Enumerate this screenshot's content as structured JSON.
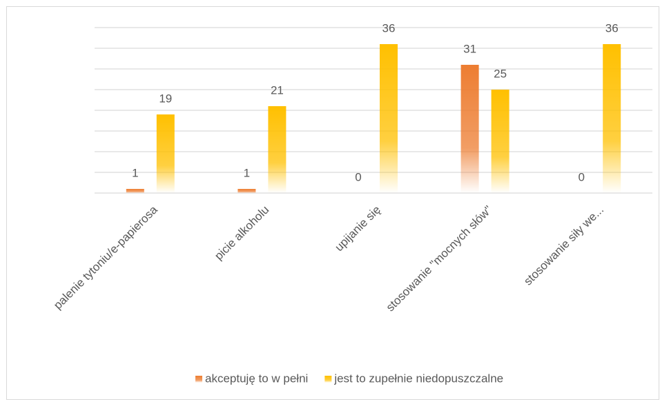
{
  "chart_data": {
    "type": "bar",
    "categories": [
      "palenie tytoniu/e-papierosa",
      "picie alkoholu",
      "upijanie się",
      "stosowanie \"mocnych słów\"",
      "stosowanie siły we..."
    ],
    "series": [
      {
        "name": "akceptuję to w pełni",
        "color": "#ed7d31",
        "values": [
          1,
          1,
          0,
          31,
          0
        ]
      },
      {
        "name": "jest to zupełnie niedopuszczalne",
        "color": "#ffc000",
        "values": [
          19,
          21,
          36,
          25,
          36
        ]
      }
    ],
    "ylim": [
      0,
      40
    ],
    "yticks": [
      0,
      5,
      10,
      15,
      20,
      25,
      30,
      35,
      40
    ],
    "grid": true,
    "legend": "bottom"
  }
}
